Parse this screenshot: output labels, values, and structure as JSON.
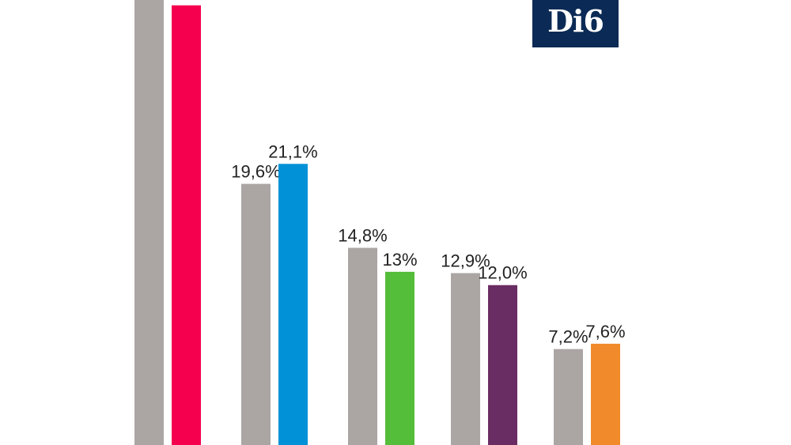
{
  "logo": {
    "text": "Di6",
    "background": "#0b2a55"
  },
  "chart_data": {
    "type": "bar",
    "title": "",
    "xlabel": "",
    "ylabel": "",
    "ylim": [
      0,
      33.4
    ],
    "grid": false,
    "legend": "none",
    "categories": [
      "",
      "",
      "",
      "",
      ""
    ],
    "series": [
      {
        "values": [
          34.5,
          19.6,
          14.8,
          12.9,
          7.2
        ],
        "labels": [
          "",
          "19,6%",
          "14,8%",
          "12,9%",
          "7,2%"
        ],
        "colors": [
          "#aba5a4",
          "#aba5a4",
          "#aba5a4",
          "#aba5a4",
          "#aba5a4"
        ]
      },
      {
        "values": [
          33.0,
          21.1,
          13.0,
          12.0,
          7.6
        ],
        "labels": [
          "",
          "21,1%",
          "13%",
          "12,0%",
          "7,6%"
        ],
        "colors": [
          "#f5004f",
          "#0091d7",
          "#54bd3a",
          "#6a2d63",
          "#f18a2a"
        ]
      }
    ]
  }
}
